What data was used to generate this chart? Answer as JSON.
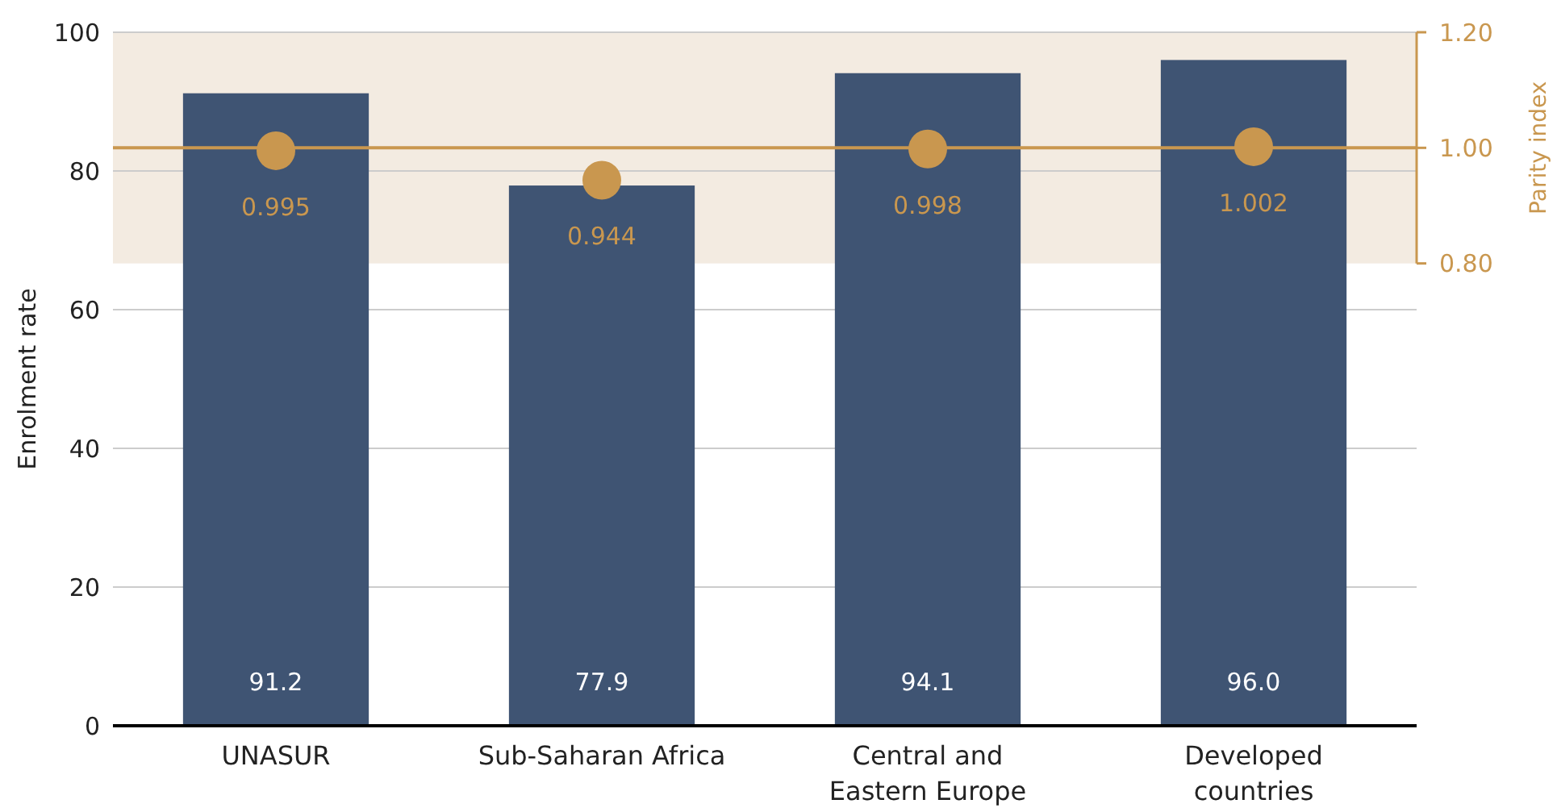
{
  "chart_data": {
    "type": "bar",
    "categories": [
      "UNASUR",
      "Sub-Saharan Africa",
      "Central and Eastern Europe",
      "Developed countries"
    ],
    "series": [
      {
        "color": "#3f5473",
        "values": [
          91.2,
          77.9,
          94.1,
          96.0
        ],
        "value_labels": [
          "91.2",
          "77.9",
          "94.1",
          "96.0"
        ]
      },
      {
        "type": "scatter",
        "axis": "y2",
        "color": "#c9974f",
        "x": [
          "UNASUR",
          "Sub-Saharan Africa",
          "Central and Eastern Europe",
          "Developed countries"
        ],
        "values": [
          0.995,
          0.944,
          0.998,
          1.002
        ],
        "value_labels": [
          "0.995",
          "0.944",
          "0.998",
          "1.002"
        ]
      }
    ],
    "ylabel": "Enrolment rate",
    "y2label": "Parity index",
    "ylim": [
      0,
      100
    ],
    "yticks": [
      0,
      20,
      40,
      60,
      80,
      100
    ],
    "y2lim": [
      0,
      1.2
    ],
    "y2ticks": [
      {
        "value": 0.8,
        "label": "0.80"
      },
      {
        "value": 1.0,
        "label": "1.00"
      },
      {
        "value": 1.2,
        "label": "1.20"
      }
    ],
    "bands": [
      {
        "axis": "y2",
        "from": 0.8,
        "to": 1.2,
        "color": "#f3ebe1"
      }
    ],
    "ref_lines": [
      {
        "axis": "y2",
        "value": 1.0,
        "color": "#c9974f"
      }
    ],
    "grid": "y",
    "marker": "circle"
  }
}
